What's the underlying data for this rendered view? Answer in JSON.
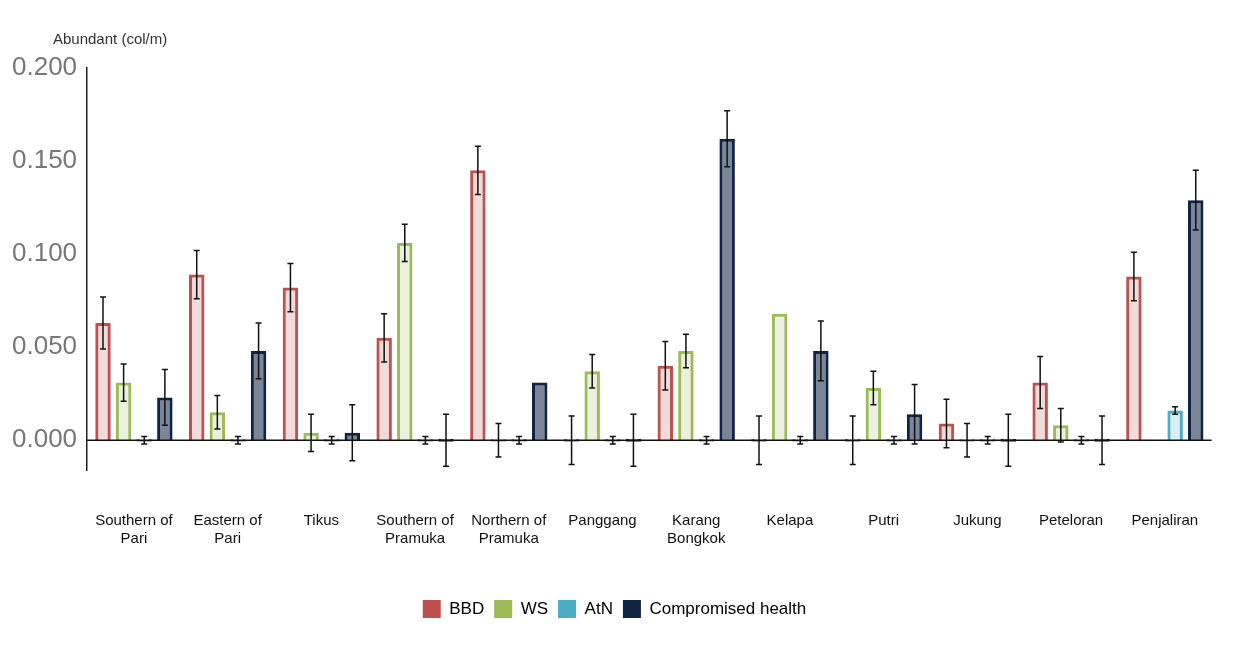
{
  "chart_data": {
    "type": "bar",
    "ylabel": "Abundant (col/m)",
    "categories": [
      "Southern of Pari",
      "Eastern of Pari",
      "Tikus",
      "Southern of Pramuka",
      "Northern of Pramuka",
      "Panggang",
      "Karang Bongkok",
      "Kelapa",
      "Putri",
      "Jukung",
      "Peteloran",
      "Penjaliran"
    ],
    "series": [
      {
        "name": "BBD",
        "color": "#c0504d",
        "values": [
          0.063,
          0.089,
          0.082,
          0.055,
          0.145,
          0,
          0.04,
          0,
          0,
          0.009,
          0.031,
          0.088
        ],
        "errors": [
          0.014,
          0.013,
          0.013,
          0.013,
          0.013,
          0.013,
          0.013,
          0.013,
          0.013,
          0.013,
          0.014,
          0.013
        ]
      },
      {
        "name": "WS",
        "color": "#9bbb59",
        "values": [
          0.031,
          0.015,
          0.004,
          0.106,
          0,
          0.037,
          0.048,
          0.068,
          0.028,
          0,
          0.008,
          null
        ],
        "errors": [
          0.01,
          0.009,
          0.01,
          0.01,
          0.009,
          0.009,
          0.009,
          null,
          0.009,
          0.009,
          0.009,
          null
        ]
      },
      {
        "name": "AtN",
        "color": "#4bacc6",
        "values": [
          0,
          0,
          0,
          0,
          0,
          0,
          0,
          0,
          0,
          0,
          0,
          0.016
        ],
        "errors": [
          0.002,
          0.002,
          0.002,
          0.002,
          0.002,
          0.002,
          0.002,
          0.002,
          0.002,
          0.002,
          0.002,
          0.002
        ]
      },
      {
        "name": "Compromised health",
        "color": "#0f2345",
        "values": [
          0.023,
          0.048,
          0.004,
          0,
          0.031,
          0,
          0.162,
          0.048,
          0.014,
          0,
          0,
          0.129
        ],
        "errors": [
          0.015,
          0.015,
          0.015,
          0.014,
          null,
          0.014,
          0.015,
          0.016,
          0.016,
          0.014,
          0.013,
          0.016
        ]
      }
    ],
    "ylim": [
      -0.016,
      0.2
    ],
    "yticks": [
      {
        "value": 0,
        "label": "0.000"
      },
      {
        "value": 0.05,
        "label": "0.050"
      },
      {
        "value": 0.1,
        "label": "0.100"
      },
      {
        "value": 0.15,
        "label": "0.150"
      },
      {
        "value": 0.2,
        "label": "0.200"
      }
    ],
    "ref_lines": [
      {
        "axis": "y",
        "value": 0,
        "color": "#111111"
      }
    ],
    "grid": false,
    "legend": "bottom"
  }
}
